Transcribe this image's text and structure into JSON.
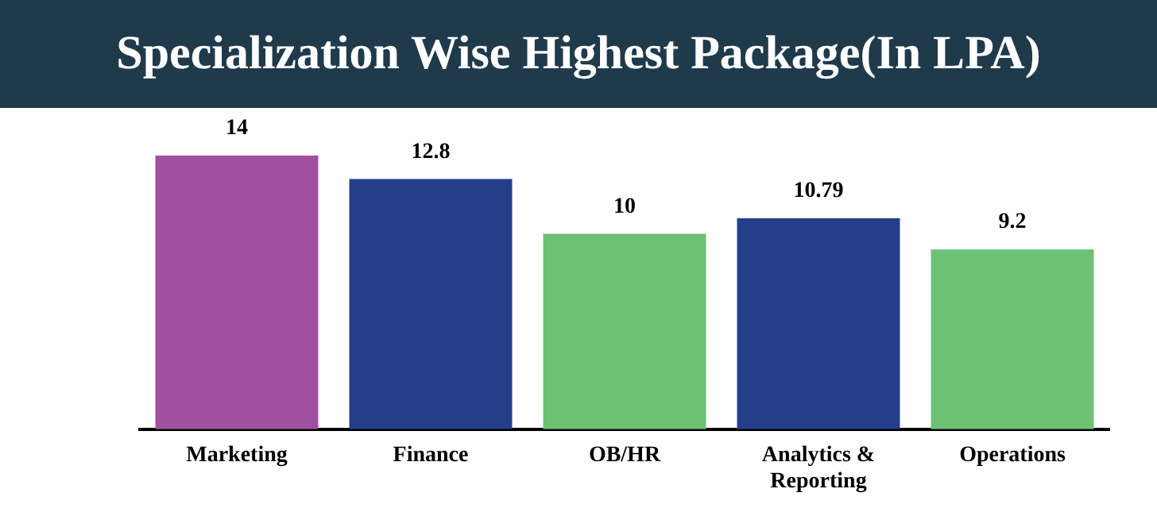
{
  "chart_data": {
    "type": "bar",
    "title": "Specialization Wise Highest Package(In LPA)",
    "categories": [
      "Marketing",
      "Finance",
      "OB/HR",
      "Analytics & Reporting",
      "Operations"
    ],
    "values": [
      14,
      12.8,
      10,
      10.79,
      9.2
    ],
    "colors": [
      "#a0509f",
      "#233e8b",
      "#6cc174",
      "#233e8b",
      "#6cc174"
    ],
    "data_labels": true,
    "grid": false,
    "legend": false
  }
}
